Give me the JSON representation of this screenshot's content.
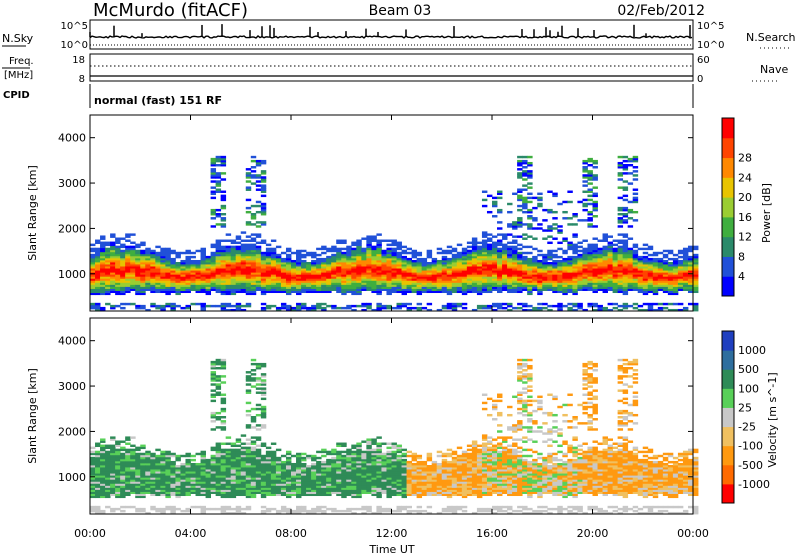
{
  "header": {
    "station": "McMurdo (fitACF)",
    "beam": "Beam 03",
    "date": "02/Feb/2012"
  },
  "noise_panel": {
    "left_label": "N.Sky",
    "right_label": "N.Search",
    "left_ticks": [
      "10^5",
      "10^0"
    ],
    "right_ticks": [
      "10^5",
      "10^0"
    ],
    "right_legend_style": "dotted"
  },
  "freq_panel": {
    "label_line1": "Freq.",
    "label_line2": "[MHz]",
    "cpid_label": "CPID",
    "left_ticks": [
      "18",
      "8"
    ],
    "right_label": "Nave",
    "right_ticks": [
      "60",
      "0"
    ],
    "right_legend_style": "dotted"
  },
  "cpid_text": "normal (fast) 151 RF",
  "colors": {
    "power": [
      "#0000ff",
      "#2050d8",
      "#2a8a6a",
      "#3fae3f",
      "#9acd32",
      "#e8c400",
      "#ff8800",
      "#ff4400",
      "#ff0000"
    ],
    "velocity_pos": [
      "#1f3fbf",
      "#2e6e9e",
      "#2e8b57",
      "#58d058"
    ],
    "velocity_neutral": "#c8c8c8",
    "velocity_neg": [
      "#f0c060",
      "#ff9910",
      "#ff6a00",
      "#ff0000"
    ]
  },
  "chart_data": [
    {
      "type": "heatmap",
      "panel": "power",
      "ylabel": "Slant Range [km]",
      "yticks": [
        "1000",
        "2000",
        "3000",
        "4000"
      ],
      "ylim": [
        180,
        4500
      ],
      "xlim": [
        0,
        24
      ],
      "colorbar_label": "Power [dB]",
      "colorbar_ticks": [
        "4",
        "8",
        "12",
        "16",
        "20",
        "24",
        "28"
      ],
      "colorbar_range": [
        0,
        30
      ],
      "main_band": {
        "lower_km": [
          500,
          600
        ],
        "upper_km": [
          1250,
          1700
        ]
      },
      "patches_hours": [
        5.0,
        6.5,
        17.2,
        19.8,
        21.3
      ]
    },
    {
      "type": "heatmap",
      "panel": "velocity",
      "ylabel": "Slant Range [km]",
      "yticks": [
        "1000",
        "2000",
        "3000",
        "4000"
      ],
      "ylim": [
        180,
        4500
      ],
      "xlim": [
        0,
        24
      ],
      "colorbar_label": "Velocity [m s^-1]",
      "colorbar_ticks": [
        "1000",
        "500",
        "100",
        "25",
        "-25",
        "-100",
        "-500",
        "-1000"
      ],
      "dominant_sign_by_hour": [
        {
          "from": 0,
          "to": 12.5,
          "sign": "positive"
        },
        {
          "from": 12.5,
          "to": 15.5,
          "sign": "negative"
        },
        {
          "from": 15.5,
          "to": 19.5,
          "sign": "mixed"
        },
        {
          "from": 19.5,
          "to": 24,
          "sign": "negative"
        }
      ]
    }
  ],
  "xaxis": {
    "ticks": [
      "00:00",
      "04:00",
      "08:00",
      "12:00",
      "16:00",
      "20:00",
      "00:00"
    ],
    "label": "Time UT"
  }
}
